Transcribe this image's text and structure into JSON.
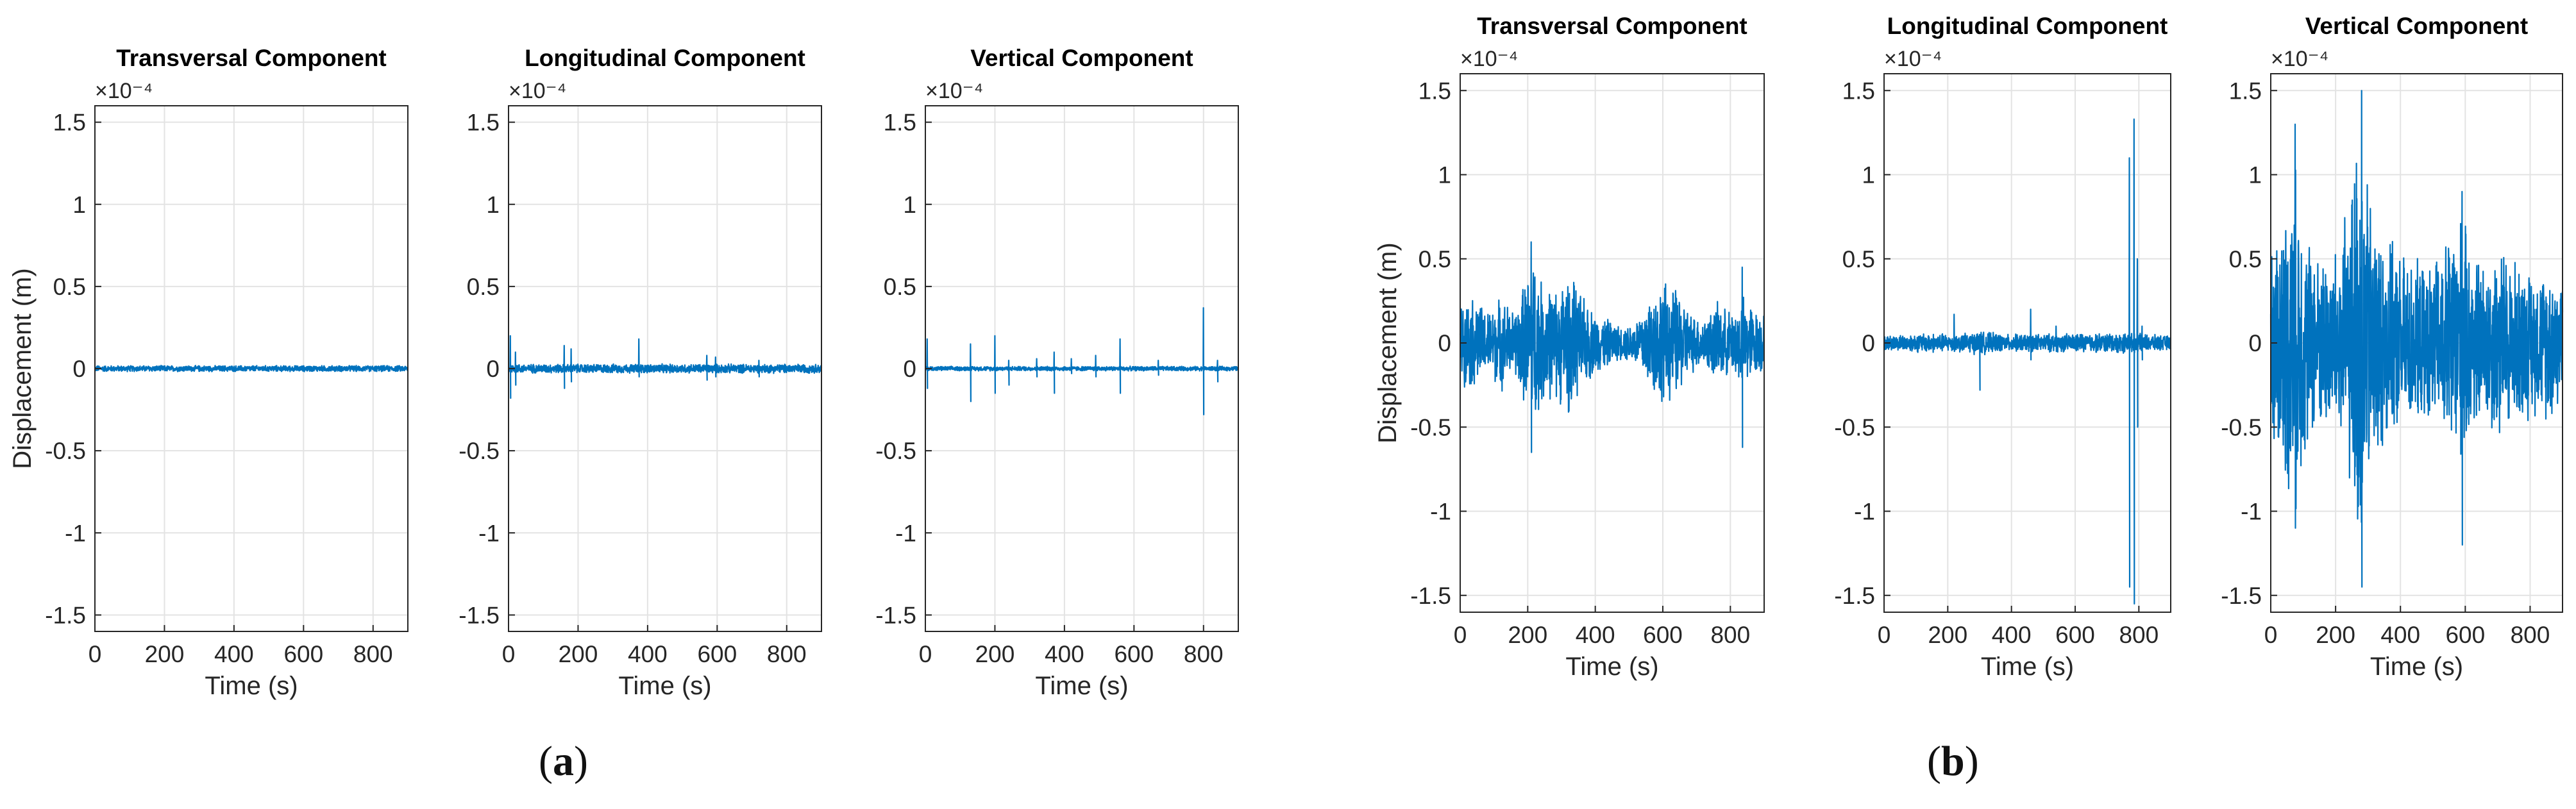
{
  "captions": {
    "a": {
      "open": "(",
      "letter": "a",
      "close": ")"
    },
    "b": {
      "open": "(",
      "letter": "b",
      "close": ")"
    }
  },
  "colors": {
    "line": "#0072BD",
    "axis": "#262626",
    "grid": "#e3e3e3",
    "text": "#262626"
  },
  "chart_data": [
    {
      "type": "line",
      "panel": "a",
      "title": "Transversal Component",
      "xlabel": "Time (s)",
      "ylabel": "Displacement (m)",
      "exponent_label": "×10⁻⁴",
      "xlim": [
        0,
        900
      ],
      "ylim": [
        -1.6,
        1.6
      ],
      "xticks": [
        0,
        200,
        400,
        600,
        800
      ],
      "yticks": [
        -1.5,
        -1,
        -0.5,
        0,
        0.5,
        1,
        1.5
      ],
      "ytick_labels": [
        "-1.5",
        "-1",
        "-0.5",
        "0",
        "0.5",
        "1",
        "1.5"
      ],
      "grid": true,
      "series": [
        {
          "noise_amplitude": 0.02,
          "envelope": [],
          "spikes": []
        }
      ]
    },
    {
      "type": "line",
      "panel": "a",
      "title": "Longitudinal Component",
      "xlabel": "Time (s)",
      "ylabel": "",
      "exponent_label": "×10⁻⁴",
      "xlim": [
        0,
        900
      ],
      "ylim": [
        -1.6,
        1.6
      ],
      "xticks": [
        0,
        200,
        400,
        600,
        800
      ],
      "yticks": [
        -1.5,
        -1,
        -0.5,
        0,
        0.5,
        1,
        1.5
      ],
      "ytick_labels": [
        "-1.5",
        "-1",
        "-0.5",
        "0",
        "0.5",
        "1",
        "1.5"
      ],
      "grid": true,
      "series": [
        {
          "noise_amplitude": 0.03,
          "envelope": [],
          "spikes": [
            [
              5,
              0.2,
              -0.18
            ],
            [
              20,
              0.1,
              -0.1
            ],
            [
              160,
              0.14,
              -0.12
            ],
            [
              180,
              0.12,
              -0.08
            ],
            [
              375,
              0.18,
              -0.05
            ],
            [
              570,
              0.08,
              -0.07
            ],
            [
              595,
              0.07,
              -0.05
            ],
            [
              720,
              0.05,
              -0.05
            ]
          ]
        }
      ]
    },
    {
      "type": "line",
      "panel": "a",
      "title": "Vertical Component",
      "xlabel": "Time (s)",
      "ylabel": "",
      "exponent_label": "×10⁻⁴",
      "xlim": [
        0,
        900
      ],
      "ylim": [
        -1.6,
        1.6
      ],
      "xticks": [
        0,
        200,
        400,
        600,
        800
      ],
      "yticks": [
        -1.5,
        -1,
        -0.5,
        0,
        0.5,
        1,
        1.5
      ],
      "ytick_labels": [
        "-1.5",
        "-1",
        "-0.5",
        "0",
        "0.5",
        "1",
        "1.5"
      ],
      "grid": true,
      "series": [
        {
          "noise_amplitude": 0.015,
          "envelope": [],
          "spikes": [
            [
              5,
              0.18,
              -0.12
            ],
            [
              130,
              0.15,
              -0.2
            ],
            [
              200,
              0.2,
              -0.15
            ],
            [
              240,
              0.05,
              -0.1
            ],
            [
              320,
              0.06,
              -0.05
            ],
            [
              370,
              0.1,
              -0.15
            ],
            [
              420,
              0.06,
              -0.03
            ],
            [
              490,
              0.08,
              -0.05
            ],
            [
              560,
              0.18,
              -0.15
            ],
            [
              670,
              0.05,
              -0.04
            ],
            [
              800,
              0.37,
              -0.28
            ],
            [
              840,
              0.05,
              -0.08
            ]
          ]
        }
      ]
    },
    {
      "type": "line",
      "panel": "b",
      "title": "Transversal Component",
      "xlabel": "Time (s)",
      "ylabel": "Displacement (m)",
      "exponent_label": "×10⁻⁴",
      "xlim": [
        0,
        900
      ],
      "ylim": [
        -1.6,
        1.6
      ],
      "xticks": [
        0,
        200,
        400,
        600,
        800
      ],
      "yticks": [
        -1.5,
        -1,
        -0.5,
        0,
        0.5,
        1,
        1.5
      ],
      "ytick_labels": [
        "-1.5",
        "-1",
        "-0.5",
        "0",
        "0.5",
        "1",
        "1.5"
      ],
      "grid": true,
      "series": [
        {
          "noise_amplitude": 0.0,
          "envelope": [
            [
              0,
              0.25
            ],
            [
              40,
              0.3
            ],
            [
              80,
              0.2
            ],
            [
              120,
              0.3
            ],
            [
              160,
              0.2
            ],
            [
              200,
              0.45
            ],
            [
              215,
              0.6
            ],
            [
              240,
              0.4
            ],
            [
              280,
              0.35
            ],
            [
              320,
              0.45
            ],
            [
              360,
              0.3
            ],
            [
              400,
              0.2
            ],
            [
              440,
              0.15
            ],
            [
              480,
              0.1
            ],
            [
              520,
              0.15
            ],
            [
              560,
              0.3
            ],
            [
              600,
              0.4
            ],
            [
              640,
              0.35
            ],
            [
              680,
              0.2
            ],
            [
              720,
              0.15
            ],
            [
              760,
              0.25
            ],
            [
              800,
              0.2
            ],
            [
              840,
              0.3
            ],
            [
              880,
              0.2
            ],
            [
              900,
              0.2
            ]
          ],
          "spikes": [
            [
              210,
              0.6,
              -0.65
            ],
            [
              835,
              0.45,
              -0.62
            ]
          ]
        }
      ]
    },
    {
      "type": "line",
      "panel": "b",
      "title": "Longitudinal Component",
      "xlabel": "Time (s)",
      "ylabel": "",
      "exponent_label": "×10⁻⁴",
      "xlim": [
        0,
        900
      ],
      "ylim": [
        -1.6,
        1.6
      ],
      "xticks": [
        0,
        200,
        400,
        600,
        800
      ],
      "yticks": [
        -1.5,
        -1,
        -0.5,
        0,
        0.5,
        1,
        1.5
      ],
      "ytick_labels": [
        "-1.5",
        "-1",
        "-0.5",
        "0",
        "0.5",
        "1",
        "1.5"
      ],
      "grid": true,
      "series": [
        {
          "noise_amplitude": 0.025,
          "envelope": [
            [
              0,
              0.02
            ],
            [
              140,
              0.04
            ],
            [
              220,
              0.03
            ],
            [
              300,
              0.05
            ],
            [
              380,
              0.03
            ],
            [
              760,
              0.04
            ],
            [
              900,
              0.02
            ]
          ],
          "spikes": [
            [
              220,
              0.17,
              -0.05
            ],
            [
              300,
              0.05,
              -0.28
            ],
            [
              460,
              0.2,
              -0.1
            ],
            [
              540,
              0.1,
              -0.05
            ],
            [
              620,
              0.05,
              -0.03
            ],
            [
              770,
              1.1,
              -1.45
            ],
            [
              785,
              1.33,
              -1.55
            ],
            [
              795,
              0.5,
              -0.5
            ],
            [
              810,
              0.1,
              -0.1
            ]
          ]
        }
      ]
    },
    {
      "type": "line",
      "panel": "b",
      "title": "Vertical Component",
      "xlabel": "Time (s)",
      "ylabel": "",
      "exponent_label": "×10⁻⁴",
      "xlim": [
        0,
        900
      ],
      "ylim": [
        -1.6,
        1.6
      ],
      "xticks": [
        0,
        200,
        400,
        600,
        800
      ],
      "yticks": [
        -1.5,
        -1,
        -0.5,
        0,
        0.5,
        1,
        1.5
      ],
      "ytick_labels": [
        "-1.5",
        "-1",
        "-0.5",
        "0",
        "0.5",
        "1",
        "1.5"
      ],
      "grid": true,
      "series": [
        {
          "noise_amplitude": 0.0,
          "envelope": [
            [
              0,
              0.6
            ],
            [
              40,
              0.85
            ],
            [
              75,
              1.1
            ],
            [
              110,
              0.7
            ],
            [
              150,
              0.55
            ],
            [
              200,
              0.6
            ],
            [
              240,
              0.85
            ],
            [
              275,
              1.45
            ],
            [
              300,
              1.0
            ],
            [
              340,
              0.7
            ],
            [
              380,
              0.6
            ],
            [
              420,
              0.55
            ],
            [
              460,
              0.5
            ],
            [
              500,
              0.5
            ],
            [
              540,
              0.65
            ],
            [
              580,
              0.85
            ],
            [
              620,
              0.6
            ],
            [
              660,
              0.5
            ],
            [
              700,
              0.65
            ],
            [
              740,
              0.55
            ],
            [
              780,
              0.5
            ],
            [
              820,
              0.45
            ],
            [
              860,
              0.5
            ],
            [
              900,
              0.45
            ]
          ],
          "spikes": [
            [
              75,
              1.3,
              -1.1
            ],
            [
              280,
              1.5,
              -1.45
            ],
            [
              590,
              0.9,
              -1.2
            ]
          ]
        }
      ]
    }
  ]
}
